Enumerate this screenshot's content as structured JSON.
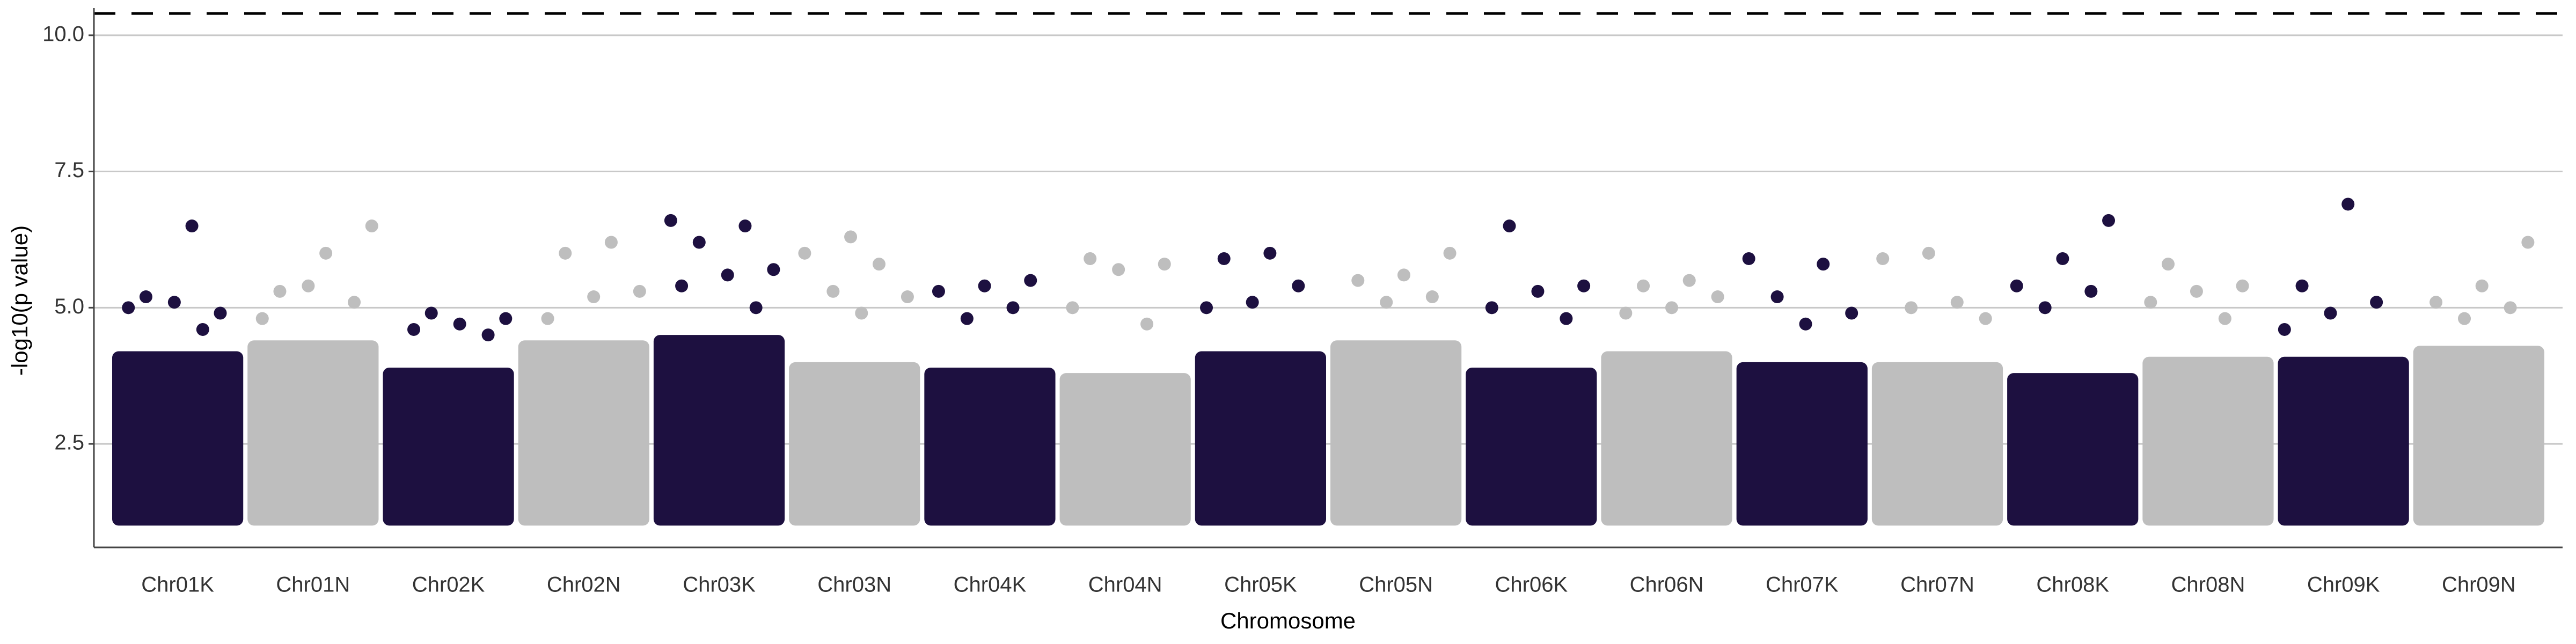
{
  "chart_data": {
    "type": "manhattan",
    "y_label": "-log10(p value)",
    "x_label": "Chromosome",
    "categories": [
      "Chr01K",
      "Chr01N",
      "Chr02K",
      "Chr02N",
      "Chr03K",
      "Chr03N",
      "Chr04K",
      "Chr04N",
      "Chr05K",
      "Chr05N",
      "Chr06K",
      "Chr06N",
      "Chr07K",
      "Chr07N",
      "Chr08K",
      "Chr08N",
      "Chr09K",
      "Chr09N"
    ],
    "colors": [
      "#1d1040",
      "#bebebe"
    ],
    "floor": 1.0,
    "band_top": [
      4.2,
      4.4,
      3.9,
      4.4,
      4.5,
      4.0,
      3.9,
      3.8,
      4.2,
      4.4,
      3.9,
      4.2,
      4.0,
      4.0,
      3.8,
      4.1,
      4.1,
      4.3
    ],
    "values": [
      [
        6.5,
        5.2,
        4.9,
        5.1,
        5.0,
        4.6
      ],
      [
        6.5,
        6.0,
        5.3,
        5.1,
        5.4,
        4.8
      ],
      [
        4.9,
        4.8,
        4.7,
        4.6,
        4.5
      ],
      [
        6.2,
        6.0,
        5.3,
        5.2,
        4.8
      ],
      [
        6.6,
        6.5,
        6.2,
        5.7,
        5.6,
        5.4,
        5.0
      ],
      [
        6.3,
        6.0,
        5.8,
        5.3,
        5.2,
        4.9
      ],
      [
        5.5,
        5.4,
        5.3,
        5.0,
        4.8
      ],
      [
        5.9,
        5.8,
        5.7,
        5.0,
        4.7
      ],
      [
        6.0,
        5.9,
        5.4,
        5.1,
        5.0
      ],
      [
        6.0,
        5.6,
        5.5,
        5.2,
        5.1
      ],
      [
        6.5,
        5.4,
        5.3,
        5.0,
        4.8
      ],
      [
        5.5,
        5.4,
        5.2,
        5.0,
        4.9
      ],
      [
        5.9,
        5.8,
        5.2,
        4.9,
        4.7
      ],
      [
        6.0,
        5.9,
        5.1,
        5.0,
        4.8
      ],
      [
        6.6,
        5.9,
        5.4,
        5.3,
        5.0
      ],
      [
        5.8,
        5.4,
        5.3,
        5.1,
        4.8
      ],
      [
        6.9,
        5.4,
        5.1,
        4.9,
        4.6
      ],
      [
        6.2,
        5.4,
        5.1,
        5.0,
        4.8
      ]
    ],
    "threshold": 10.4,
    "ylim": [
      0.6,
      10.5
    ],
    "yticks": [
      2.5,
      5.0,
      7.5,
      10.0
    ],
    "grid": true
  }
}
